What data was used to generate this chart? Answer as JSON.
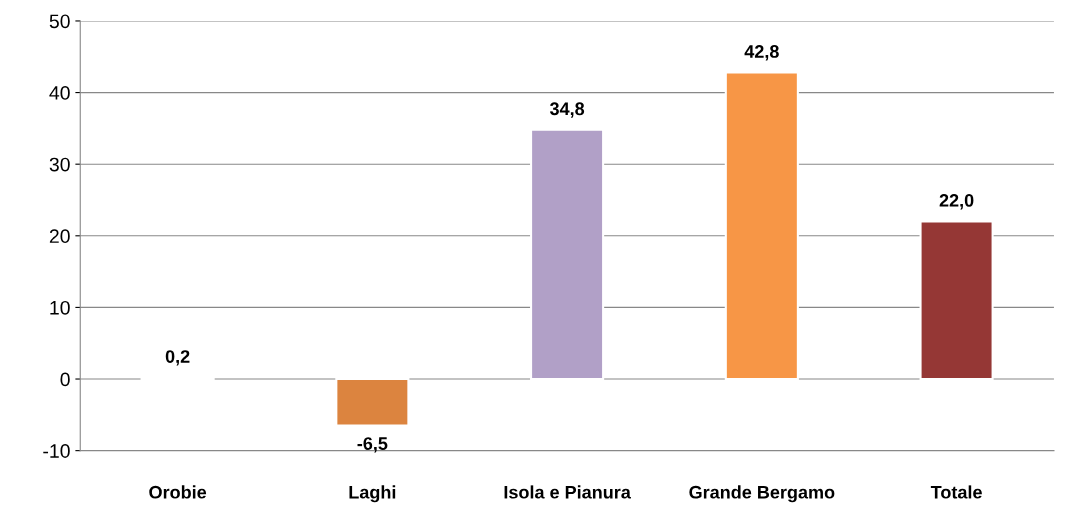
{
  "chart_data": {
    "type": "bar",
    "categories": [
      "Orobie",
      "Laghi",
      "Isola e Pianura",
      "Grande Bergamo",
      "Totale"
    ],
    "values": [
      0.2,
      -6.5,
      34.8,
      42.8,
      22.0
    ],
    "colors": [
      "#d9d9d9",
      "#dc843f",
      "#b1a0c7",
      "#f79646",
      "#953735"
    ],
    "value_labels": [
      "0,2",
      "-6,5",
      "34,8",
      "42,8",
      "22,0"
    ],
    "ylim": [
      -10,
      50
    ],
    "yticks": [
      -10,
      0,
      10,
      20,
      30,
      40,
      50
    ],
    "grid": "y"
  }
}
